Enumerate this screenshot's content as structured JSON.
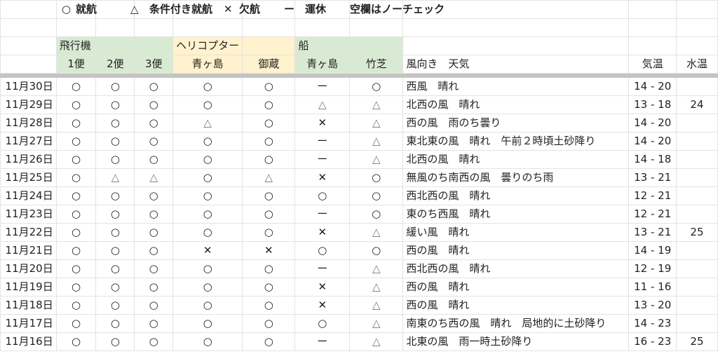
{
  "legend": {
    "items": [
      {
        "symbol": "○",
        "label": "就航"
      },
      {
        "symbol": "△",
        "label": "条件付き就航"
      },
      {
        "symbol": "✕",
        "label": "欠航"
      },
      {
        "symbol": "ー",
        "label": "運休"
      }
    ],
    "note": "空欄はノーチェック"
  },
  "categories": {
    "airplane": "飛行機",
    "helicopter": "ヘリコプター",
    "ship": "船"
  },
  "headers": [
    "1便",
    "2便",
    "3便",
    "青ヶ島",
    "御蔵",
    "青ヶ島",
    "竹芝",
    "風向き　天気",
    "気温",
    "水温"
  ],
  "colors": {
    "airplane_bg": "#d9ead3",
    "helicopter_bg": "#fff2cc",
    "ship_bg": "#d9ead3"
  },
  "rows": [
    {
      "date": "11月30日",
      "marks": [
        "○",
        "○",
        "○",
        "○",
        "○",
        "ー",
        "○"
      ],
      "weather": "西風　晴れ",
      "air_temp": "14 - 20",
      "water_temp": ""
    },
    {
      "date": "11月29日",
      "marks": [
        "○",
        "○",
        "○",
        "○",
        "○",
        "△",
        "△"
      ],
      "weather": "北西の風　晴れ",
      "air_temp": "13 - 18",
      "water_temp": "24"
    },
    {
      "date": "11月28日",
      "marks": [
        "○",
        "○",
        "○",
        "△",
        "○",
        "✕",
        "△"
      ],
      "weather": "西の風　雨のち曇り",
      "air_temp": "14 - 20",
      "water_temp": ""
    },
    {
      "date": "11月27日",
      "marks": [
        "○",
        "○",
        "○",
        "○",
        "○",
        "ー",
        "△"
      ],
      "weather": "東北東の風　晴れ　午前２時頃土砂降り",
      "air_temp": "14 - 20",
      "water_temp": ""
    },
    {
      "date": "11月26日",
      "marks": [
        "○",
        "○",
        "○",
        "○",
        "○",
        "ー",
        "△"
      ],
      "weather": "北西の風　晴れ",
      "air_temp": "14 - 18",
      "water_temp": ""
    },
    {
      "date": "11月25日",
      "marks": [
        "○",
        "△",
        "△",
        "○",
        "△",
        "✕",
        "○"
      ],
      "weather": "無風のち南西の風　曇りのち雨",
      "air_temp": "13 - 21",
      "water_temp": ""
    },
    {
      "date": "11月24日",
      "marks": [
        "○",
        "○",
        "○",
        "○",
        "○",
        "○",
        "○"
      ],
      "weather": "西北西の風　晴れ",
      "air_temp": "12 - 21",
      "water_temp": ""
    },
    {
      "date": "11月23日",
      "marks": [
        "○",
        "○",
        "○",
        "○",
        "○",
        "ー",
        "○"
      ],
      "weather": "東のち西風　晴れ",
      "air_temp": "12 - 21",
      "water_temp": ""
    },
    {
      "date": "11月22日",
      "marks": [
        "○",
        "○",
        "○",
        "○",
        "○",
        "✕",
        "△"
      ],
      "weather": "緩い風　晴れ",
      "air_temp": "13 - 21",
      "water_temp": "25"
    },
    {
      "date": "11月21日",
      "marks": [
        "○",
        "○",
        "○",
        "✕",
        "✕",
        "○",
        "○"
      ],
      "weather": "西の風　晴れ",
      "air_temp": "14 - 19",
      "water_temp": ""
    },
    {
      "date": "11月20日",
      "marks": [
        "○",
        "○",
        "○",
        "○",
        "○",
        "ー",
        "△"
      ],
      "weather": "西北西の風　晴れ",
      "air_temp": "12 - 19",
      "water_temp": ""
    },
    {
      "date": "11月19日",
      "marks": [
        "○",
        "○",
        "○",
        "○",
        "○",
        "✕",
        "△"
      ],
      "weather": "西の風　晴れ",
      "air_temp": "11 - 16",
      "water_temp": ""
    },
    {
      "date": "11月18日",
      "marks": [
        "○",
        "○",
        "○",
        "○",
        "○",
        "✕",
        "△"
      ],
      "weather": "西の風　晴れ",
      "air_temp": "13 - 20",
      "water_temp": ""
    },
    {
      "date": "11月17日",
      "marks": [
        "○",
        "○",
        "○",
        "○",
        "○",
        "○",
        "△"
      ],
      "weather": "南東のち西の風　晴れ　局地的に土砂降り",
      "air_temp": "14 - 23",
      "water_temp": ""
    },
    {
      "date": "11月16日",
      "marks": [
        "○",
        "○",
        "○",
        "○",
        "○",
        "ー",
        "△"
      ],
      "weather": "北東の風　雨一時土砂降り",
      "air_temp": "16 - 23",
      "water_temp": "25"
    }
  ]
}
